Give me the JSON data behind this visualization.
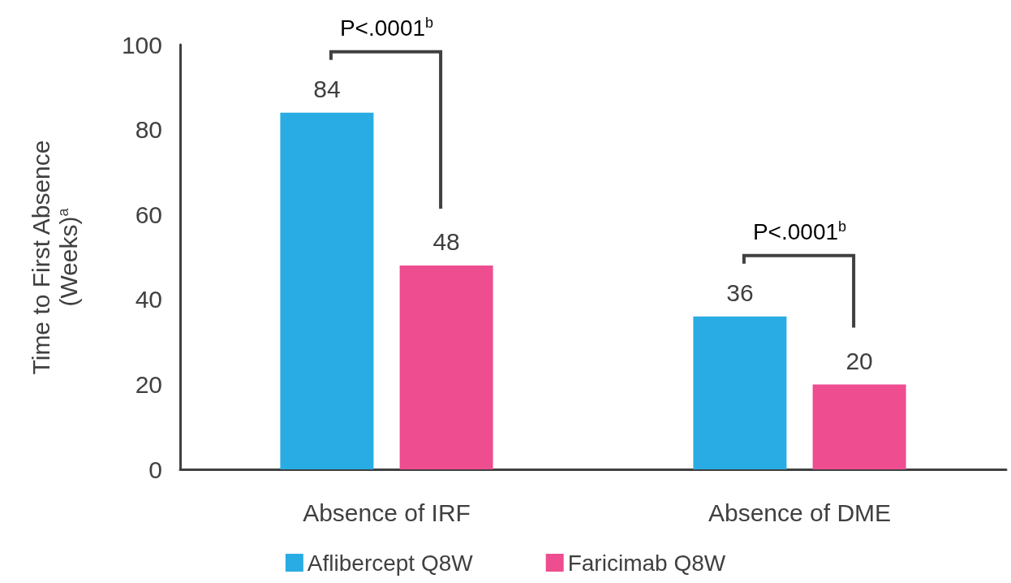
{
  "chart_data": {
    "type": "bar",
    "ylabel": "Time to First Absence (Weeks)$^{a}$",
    "categories": [
      "Absence of IRF",
      "Absence of DME"
    ],
    "series": [
      {
        "name": "Aflibercept Q8W",
        "color": "#29ace3",
        "values": [
          84,
          36
        ]
      },
      {
        "name": "Faricimab Q8W",
        "color": "#ee4d8f",
        "values": [
          48,
          20
        ]
      }
    ],
    "ylim": [
      0,
      100
    ],
    "yticks": [
      0,
      20,
      40,
      60,
      80,
      100
    ],
    "data_labels": true,
    "grid": false,
    "legend": "bottom",
    "annotations": [
      "P<.0001$^{b}$",
      "P<.0001$^{b}$"
    ]
  }
}
